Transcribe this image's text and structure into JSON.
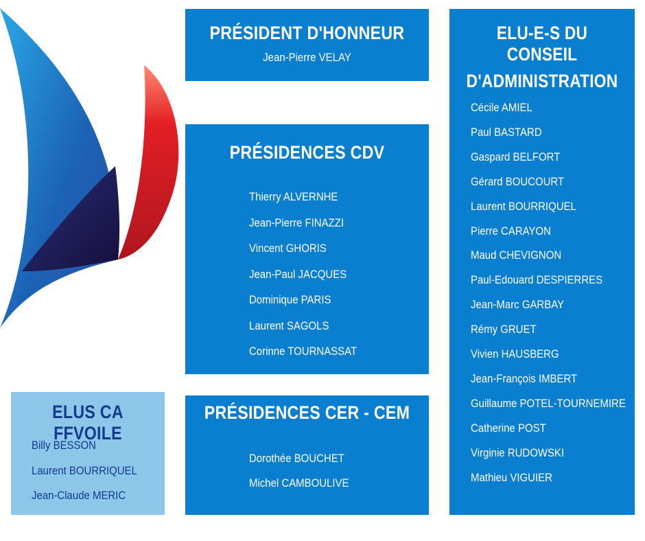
{
  "president_honneur": {
    "title": "PRÉSIDENT D'HONNEUR",
    "name": "Jean-Pierre VELAY"
  },
  "presidences_cdv": {
    "title": "PRÉSIDENCES CDV",
    "names": [
      "Thierry ALVERNHE",
      "Jean-Pierre FINAZZI",
      "Vincent GHORIS",
      "Jean-Paul JACQUES",
      "Dominique PARIS",
      "Laurent SAGOLS",
      "Corinne TOURNASSAT"
    ]
  },
  "presidences_cer_cem": {
    "title": "PRÉSIDENCES CER - CEM",
    "names": [
      "Dorothée BOUCHET",
      "Michel CAMBOULIVE"
    ]
  },
  "conseil_administration": {
    "title_line1": "ELU-E-S DU CONSEIL",
    "title_line2": "D'ADMINISTRATION",
    "names": [
      "Cécile AMIEL",
      "Paul BASTARD",
      "Gaspard BELFORT",
      "Gérard BOUCOURT",
      "Laurent BOURRIQUEL",
      "Pierre CARAYON",
      "Maud CHEVIGNON",
      "Paul-Edouard DESPIERRES",
      "Jean-Marc GARBAY",
      "Rémy GRUET",
      "Vivien HAUSBERG",
      "Jean-François IMBERT",
      "Guillaume POTEL-TOURNEMIRE",
      "Catherine POST",
      "Virginie RUDOWSKI",
      "Mathieu VIGUIER"
    ]
  },
  "elus_ffvoile": {
    "title": "ELUS CA FFVOILE",
    "names": [
      "Billy BESSON",
      "Laurent BOURRIQUEL",
      "Jean-Claude MERIC"
    ]
  },
  "colors": {
    "box_blue": "#0a7fcf",
    "box_light_blue": "#8cc7ea",
    "title_dark_blue": "#153a8c",
    "sail_red": "#e31e24",
    "sail_blue": "#1c63b5"
  },
  "logo": {
    "icon": "sail-logo-icon"
  }
}
